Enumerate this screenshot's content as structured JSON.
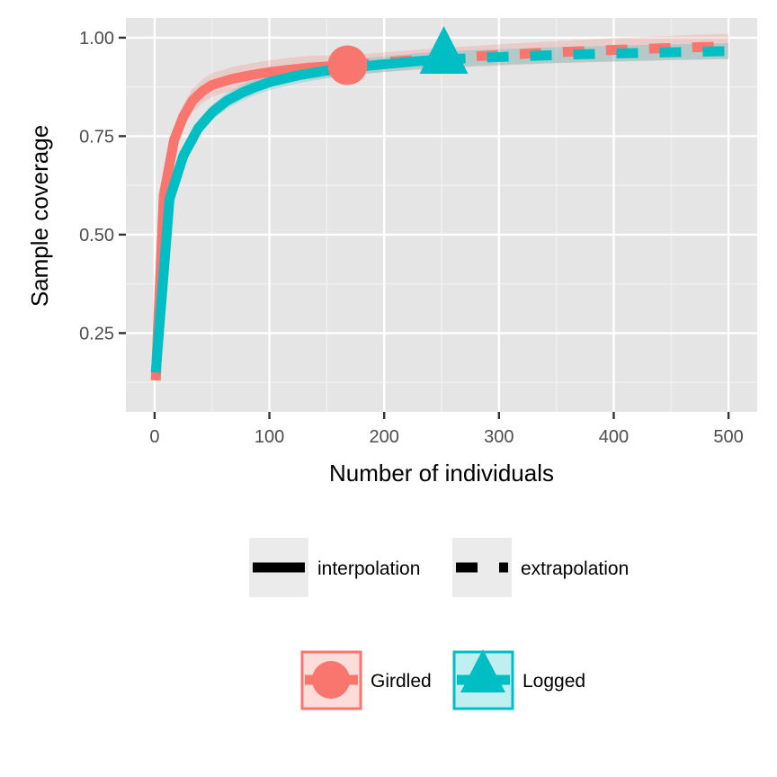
{
  "chart_data": {
    "type": "line",
    "xlabel": "Number of individuals",
    "ylabel": "Sample coverage",
    "xlim": [
      -25,
      525
    ],
    "ylim": [
      0.05,
      1.05
    ],
    "x_ticks": [
      0,
      100,
      200,
      300,
      400,
      500
    ],
    "x_tick_labels": [
      "0",
      "100",
      "200",
      "300",
      "400",
      "500"
    ],
    "y_ticks": [
      0.25,
      0.5,
      0.75,
      1.0
    ],
    "y_tick_labels": [
      "0.25",
      "0.50",
      "0.75",
      "1.00"
    ],
    "grid": true,
    "series": [
      {
        "name": "Girdled",
        "color": "#F8766D",
        "marker": "circle",
        "observed": {
          "x": 168,
          "y": 0.93
        },
        "interpolation": {
          "x": [
            1,
            8,
            17,
            25,
            33,
            42,
            50,
            67,
            84,
            101,
            118,
            134,
            151,
            168
          ],
          "y": [
            0.13,
            0.6,
            0.74,
            0.8,
            0.84,
            0.865,
            0.88,
            0.895,
            0.905,
            0.913,
            0.919,
            0.924,
            0.927,
            0.93
          ]
        },
        "extrapolation": {
          "x": [
            168,
            200,
            250,
            300,
            350,
            400,
            450,
            500
          ],
          "y": [
            0.93,
            0.938,
            0.948,
            0.956,
            0.963,
            0.969,
            0.974,
            0.978
          ]
        },
        "ci_width": [
          0.0,
          0.02,
          0.025,
          0.03,
          0.03,
          0.03,
          0.03,
          0.03,
          0.03,
          0.03,
          0.03,
          0.03,
          0.028,
          0.025,
          0.025,
          0.026,
          0.027,
          0.028,
          0.03,
          0.031,
          0.032
        ]
      },
      {
        "name": "Logged",
        "color": "#00BFC4",
        "marker": "triangle",
        "observed": {
          "x": 252,
          "y": 0.945
        },
        "interpolation": {
          "x": [
            1,
            13,
            25,
            38,
            50,
            63,
            76,
            88,
            101,
            126,
            151,
            176,
            202,
            227,
            252
          ],
          "y": [
            0.15,
            0.59,
            0.7,
            0.77,
            0.81,
            0.84,
            0.86,
            0.875,
            0.888,
            0.905,
            0.917,
            0.926,
            0.933,
            0.94,
            0.945
          ]
        },
        "extrapolation": {
          "x": [
            252,
            300,
            350,
            400,
            450,
            500
          ],
          "y": [
            0.945,
            0.951,
            0.956,
            0.96,
            0.963,
            0.966
          ]
        },
        "ci_width": [
          0.0,
          0.015,
          0.02,
          0.02,
          0.02,
          0.02,
          0.02,
          0.02,
          0.02,
          0.02,
          0.02,
          0.02,
          0.02,
          0.02,
          0.02,
          0.02,
          0.02,
          0.02,
          0.02,
          0.02
        ]
      }
    ],
    "legend": {
      "placement": "bottom",
      "line_types": [
        {
          "label": "interpolation",
          "style": "solid"
        },
        {
          "label": "extrapolation",
          "style": "dashed"
        }
      ],
      "groups": [
        {
          "label": "Girdled",
          "color": "#F8766D",
          "marker": "circle"
        },
        {
          "label": "Logged",
          "color": "#00BFC4",
          "marker": "triangle"
        }
      ]
    }
  },
  "colors": {
    "panel_background": "#E5E5E5",
    "grid_major": "#FFFFFF",
    "legend_key_background": "#EBEBEB"
  }
}
